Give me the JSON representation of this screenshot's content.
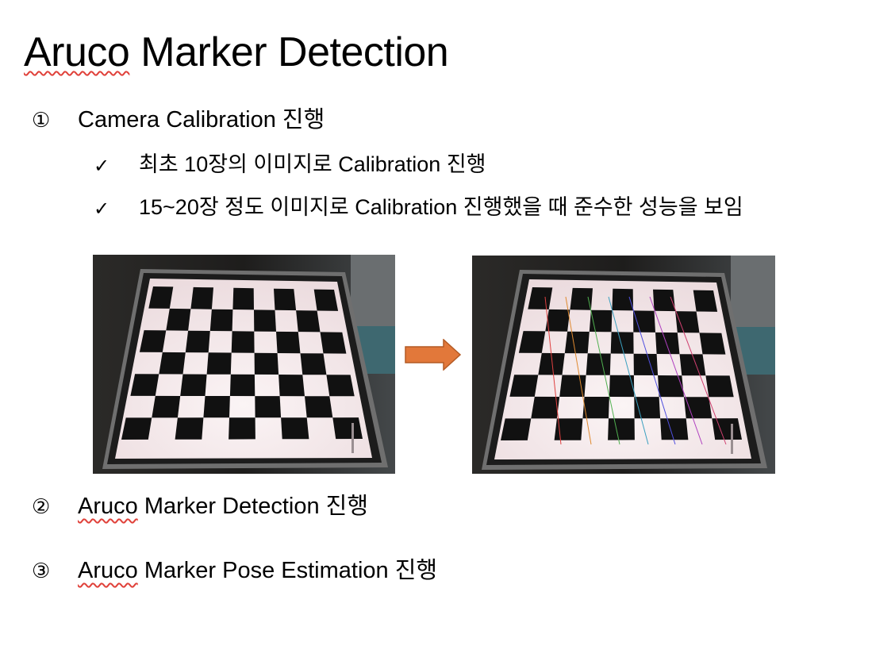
{
  "slide": {
    "title": {
      "word": "Aruco",
      "rest": " Marker Detection"
    },
    "steps": [
      {
        "marker": "①",
        "text": "Camera Calibration 진행"
      },
      {
        "marker": "②",
        "word": "Aruco",
        "rest": " Marker Detection 진행"
      },
      {
        "marker": "③",
        "word": "Aruco",
        "rest": " Marker Pose Estimation 진행"
      }
    ],
    "bullets": [
      {
        "marker": "✓",
        "text": "최초 10장의 이미지로 Calibration 진행"
      },
      {
        "marker": "✓",
        "text": "15~20장 정도 이미지로 Calibration 진행했을 때 준수한 성능을 보임"
      }
    ]
  },
  "images": {
    "left": {
      "subject": "checkerboard-photo"
    },
    "right": {
      "subject": "checkerboard-photo-with-detected-corners"
    }
  },
  "colors": {
    "arrow": "#e2783a",
    "arrow_border": "#b35a24",
    "spellcheck_underline": "#e0413a"
  }
}
